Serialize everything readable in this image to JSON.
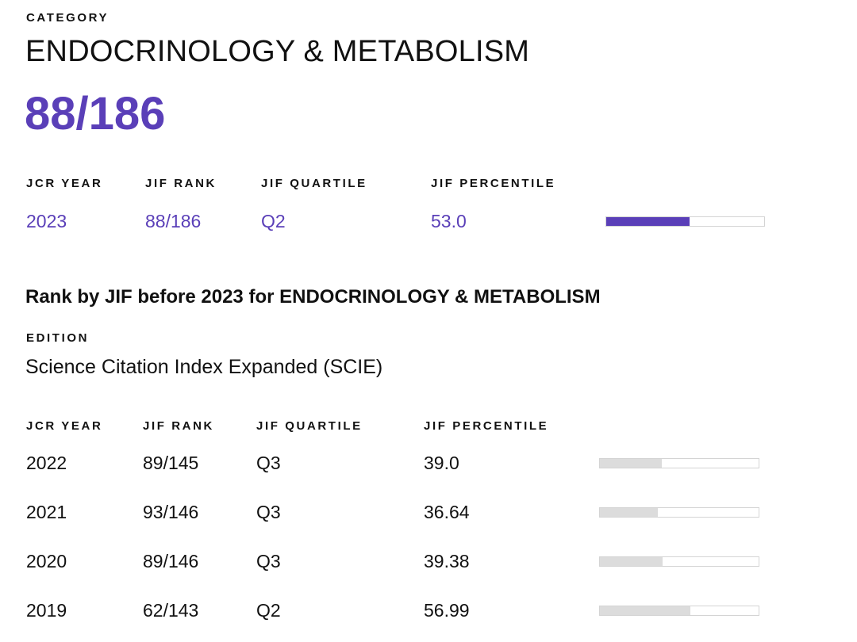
{
  "category": {
    "label": "CATEGORY",
    "name": "ENDOCRINOLOGY & METABOLISM",
    "rank": "88/186"
  },
  "current": {
    "headers": {
      "year": "JCR YEAR",
      "rank": "JIF RANK",
      "quartile": "JIF QUARTILE",
      "percentile": "JIF PERCENTILE"
    },
    "row": {
      "year": "2023",
      "rank": "88/186",
      "quartile": "Q2",
      "percentile": "53.0",
      "percentile_value": 53.0
    }
  },
  "history": {
    "heading": "Rank by JIF before 2023 for ENDOCRINOLOGY & METABOLISM",
    "edition_label": "EDITION",
    "edition_value": "Science Citation Index Expanded (SCIE)",
    "headers": {
      "year": "JCR YEAR",
      "rank": "JIF RANK",
      "quartile": "JIF QUARTILE",
      "percentile": "JIF PERCENTILE"
    },
    "rows": [
      {
        "year": "2022",
        "rank": "89/145",
        "quartile": "Q3",
        "percentile": "39.0",
        "percentile_value": 39.0
      },
      {
        "year": "2021",
        "rank": "93/146",
        "quartile": "Q3",
        "percentile": "36.64",
        "percentile_value": 36.64
      },
      {
        "year": "2020",
        "rank": "89/146",
        "quartile": "Q3",
        "percentile": "39.38",
        "percentile_value": 39.38
      },
      {
        "year": "2019",
        "rank": "62/143",
        "quartile": "Q2",
        "percentile": "56.99",
        "percentile_value": 56.99
      }
    ]
  },
  "colors": {
    "accent": "#5a3fb8",
    "bar_track_border": "#d4d4d4",
    "bar_history_fill": "#dcdcdc",
    "text": "#111111"
  }
}
